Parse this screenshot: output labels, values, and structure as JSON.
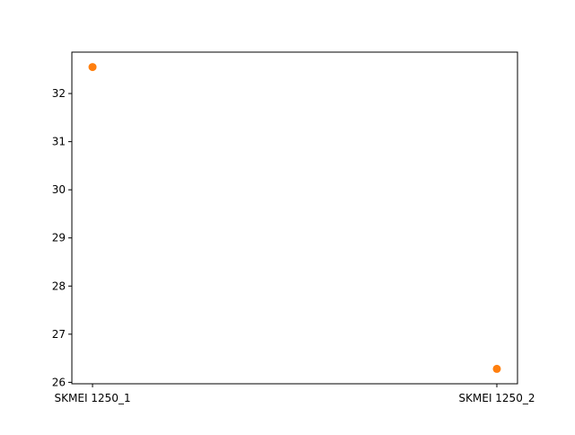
{
  "chart_data": {
    "type": "scatter",
    "categories": [
      "SKMEI 1250_1",
      "SKMEI 1250_2"
    ],
    "series": [
      {
        "values": [
          32.55,
          26.28
        ],
        "color": "#ff7f0e"
      }
    ],
    "xlabel": "",
    "ylabel": "",
    "ylim": [
      25.97,
      32.86
    ],
    "yticks": [
      26,
      27,
      28,
      29,
      30,
      31,
      32
    ],
    "grid": false
  }
}
